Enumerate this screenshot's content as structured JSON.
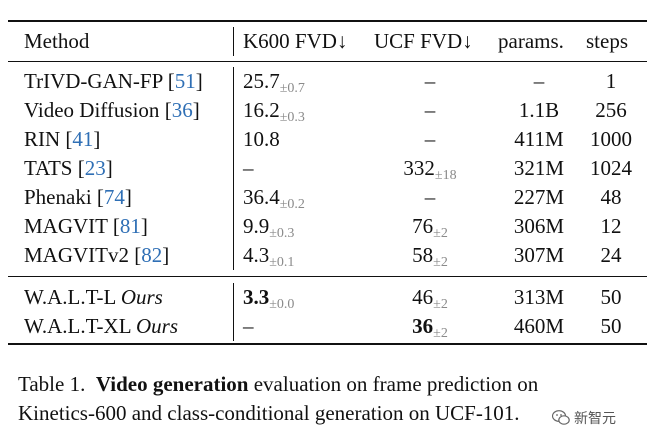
{
  "table": {
    "headers": {
      "method": "Method",
      "k600": "K600 FVD↓",
      "ucf": "UCF FVD↓",
      "params": "params.",
      "steps": "steps"
    },
    "rows": [
      {
        "name": "TrIVD-GAN-FP",
        "cite": "51",
        "k600": "25.7",
        "k600_std": "±0.7",
        "ucf": "–",
        "ucf_std": "",
        "params": "–",
        "steps": "1"
      },
      {
        "name": "Video Diffusion",
        "cite": "36",
        "k600": "16.2",
        "k600_std": "±0.3",
        "ucf": "–",
        "ucf_std": "",
        "params": "1.1B",
        "steps": "256"
      },
      {
        "name": "RIN",
        "cite": "41",
        "k600": "10.8",
        "k600_std": "",
        "ucf": "–",
        "ucf_std": "",
        "params": "411M",
        "steps": "1000"
      },
      {
        "name": "TATS",
        "cite": "23",
        "k600": "–",
        "k600_std": "",
        "ucf": "332",
        "ucf_std": "±18",
        "params": "321M",
        "steps": "1024"
      },
      {
        "name": "Phenaki",
        "cite": "74",
        "k600": "36.4",
        "k600_std": "±0.2",
        "ucf": "–",
        "ucf_std": "",
        "params": "227M",
        "steps": "48"
      },
      {
        "name": "MAGVIT",
        "cite": "81",
        "k600": "9.9",
        "k600_std": "±0.3",
        "ucf": "76",
        "ucf_std": "±2",
        "params": "306M",
        "steps": "12"
      },
      {
        "name": "MAGVITv2",
        "cite": "82",
        "k600": "4.3",
        "k600_std": "±0.1",
        "ucf": "58",
        "ucf_std": "±2",
        "params": "307M",
        "steps": "24"
      }
    ],
    "ours_rows": [
      {
        "name": "W.A.L.T-L",
        "tag": "Ours",
        "k600": "3.3",
        "k600_std": "±0.0",
        "ucf": "46",
        "ucf_std": "±2",
        "params": "313M",
        "steps": "50"
      },
      {
        "name": "W.A.L.T-XL",
        "tag": "Ours",
        "k600": "–",
        "k600_std": "",
        "ucf": "36",
        "ucf_std": "±2",
        "params": "460M",
        "steps": "50"
      }
    ]
  },
  "caption": {
    "prefix": "Table 1.",
    "bold": "Video generation",
    "line1_rest": "evaluation on frame prediction on",
    "line2": "Kinetics-600 and class-conditional generation on UCF-101."
  },
  "watermark": {
    "icon": "wechat-icon",
    "text": "新智元"
  }
}
